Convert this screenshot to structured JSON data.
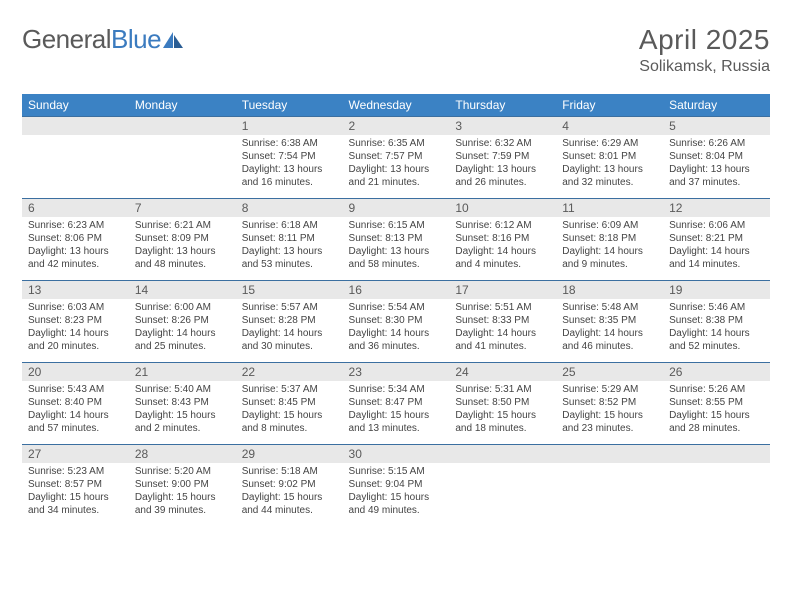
{
  "logo": {
    "part1": "General",
    "part2": "Blue"
  },
  "title": "April 2025",
  "subtitle": "Solikamsk, Russia",
  "header_bg": "#3b82c4",
  "header_fg": "#ffffff",
  "daynum_bg": "#e8e8e8",
  "border_color": "#3b6fa0",
  "text_color": "#5a5a5a",
  "body_text_color": "#444444",
  "font_size_title": 28,
  "font_size_subtitle": 16,
  "font_size_header": 12,
  "font_size_body": 10,
  "columns": [
    "Sunday",
    "Monday",
    "Tuesday",
    "Wednesday",
    "Thursday",
    "Friday",
    "Saturday"
  ],
  "weeks": [
    [
      null,
      null,
      {
        "n": "1",
        "sr": "6:38 AM",
        "ss": "7:54 PM",
        "dl": "13 hours and 16 minutes."
      },
      {
        "n": "2",
        "sr": "6:35 AM",
        "ss": "7:57 PM",
        "dl": "13 hours and 21 minutes."
      },
      {
        "n": "3",
        "sr": "6:32 AM",
        "ss": "7:59 PM",
        "dl": "13 hours and 26 minutes."
      },
      {
        "n": "4",
        "sr": "6:29 AM",
        "ss": "8:01 PM",
        "dl": "13 hours and 32 minutes."
      },
      {
        "n": "5",
        "sr": "6:26 AM",
        "ss": "8:04 PM",
        "dl": "13 hours and 37 minutes."
      }
    ],
    [
      {
        "n": "6",
        "sr": "6:23 AM",
        "ss": "8:06 PM",
        "dl": "13 hours and 42 minutes."
      },
      {
        "n": "7",
        "sr": "6:21 AM",
        "ss": "8:09 PM",
        "dl": "13 hours and 48 minutes."
      },
      {
        "n": "8",
        "sr": "6:18 AM",
        "ss": "8:11 PM",
        "dl": "13 hours and 53 minutes."
      },
      {
        "n": "9",
        "sr": "6:15 AM",
        "ss": "8:13 PM",
        "dl": "13 hours and 58 minutes."
      },
      {
        "n": "10",
        "sr": "6:12 AM",
        "ss": "8:16 PM",
        "dl": "14 hours and 4 minutes."
      },
      {
        "n": "11",
        "sr": "6:09 AM",
        "ss": "8:18 PM",
        "dl": "14 hours and 9 minutes."
      },
      {
        "n": "12",
        "sr": "6:06 AM",
        "ss": "8:21 PM",
        "dl": "14 hours and 14 minutes."
      }
    ],
    [
      {
        "n": "13",
        "sr": "6:03 AM",
        "ss": "8:23 PM",
        "dl": "14 hours and 20 minutes."
      },
      {
        "n": "14",
        "sr": "6:00 AM",
        "ss": "8:26 PM",
        "dl": "14 hours and 25 minutes."
      },
      {
        "n": "15",
        "sr": "5:57 AM",
        "ss": "8:28 PM",
        "dl": "14 hours and 30 minutes."
      },
      {
        "n": "16",
        "sr": "5:54 AM",
        "ss": "8:30 PM",
        "dl": "14 hours and 36 minutes."
      },
      {
        "n": "17",
        "sr": "5:51 AM",
        "ss": "8:33 PM",
        "dl": "14 hours and 41 minutes."
      },
      {
        "n": "18",
        "sr": "5:48 AM",
        "ss": "8:35 PM",
        "dl": "14 hours and 46 minutes."
      },
      {
        "n": "19",
        "sr": "5:46 AM",
        "ss": "8:38 PM",
        "dl": "14 hours and 52 minutes."
      }
    ],
    [
      {
        "n": "20",
        "sr": "5:43 AM",
        "ss": "8:40 PM",
        "dl": "14 hours and 57 minutes."
      },
      {
        "n": "21",
        "sr": "5:40 AM",
        "ss": "8:43 PM",
        "dl": "15 hours and 2 minutes."
      },
      {
        "n": "22",
        "sr": "5:37 AM",
        "ss": "8:45 PM",
        "dl": "15 hours and 8 minutes."
      },
      {
        "n": "23",
        "sr": "5:34 AM",
        "ss": "8:47 PM",
        "dl": "15 hours and 13 minutes."
      },
      {
        "n": "24",
        "sr": "5:31 AM",
        "ss": "8:50 PM",
        "dl": "15 hours and 18 minutes."
      },
      {
        "n": "25",
        "sr": "5:29 AM",
        "ss": "8:52 PM",
        "dl": "15 hours and 23 minutes."
      },
      {
        "n": "26",
        "sr": "5:26 AM",
        "ss": "8:55 PM",
        "dl": "15 hours and 28 minutes."
      }
    ],
    [
      {
        "n": "27",
        "sr": "5:23 AM",
        "ss": "8:57 PM",
        "dl": "15 hours and 34 minutes."
      },
      {
        "n": "28",
        "sr": "5:20 AM",
        "ss": "9:00 PM",
        "dl": "15 hours and 39 minutes."
      },
      {
        "n": "29",
        "sr": "5:18 AM",
        "ss": "9:02 PM",
        "dl": "15 hours and 44 minutes."
      },
      {
        "n": "30",
        "sr": "5:15 AM",
        "ss": "9:04 PM",
        "dl": "15 hours and 49 minutes."
      },
      null,
      null,
      null
    ]
  ],
  "labels": {
    "sunrise": "Sunrise:",
    "sunset": "Sunset:",
    "daylight": "Daylight:"
  }
}
